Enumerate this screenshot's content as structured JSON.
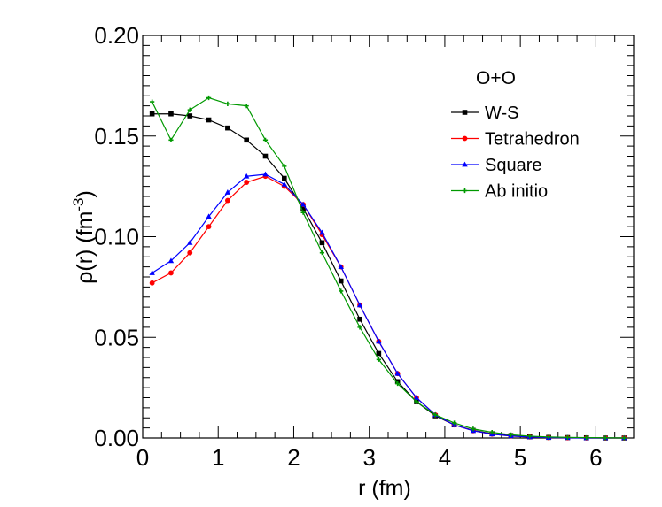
{
  "chart_data": {
    "type": "line",
    "title": "O+O",
    "xlabel": "r (fm)",
    "ylabel": {
      "prefix": "ρ(r)  (fm",
      "superscript": "-3",
      "suffix": ")"
    },
    "xlim": [
      0,
      6.5
    ],
    "ylim": [
      0,
      0.2
    ],
    "xticks": [
      0,
      1,
      2,
      3,
      4,
      5,
      6
    ],
    "xtick_labels": [
      "0",
      "1",
      "2",
      "3",
      "4",
      "5",
      "6"
    ],
    "yticks": [
      0,
      0.05,
      0.1,
      0.15,
      0.2
    ],
    "ytick_labels": [
      "0.00",
      "0.05",
      "0.10",
      "0.15",
      "0.20"
    ],
    "grid": false,
    "legend_position": "top-right",
    "series": [
      {
        "name": "W-S",
        "color": "#000000",
        "marker": "square",
        "x": [
          0.125,
          0.375,
          0.625,
          0.875,
          1.125,
          1.375,
          1.625,
          1.875,
          2.125,
          2.375,
          2.625,
          2.875,
          3.125,
          3.375,
          3.625,
          3.875,
          4.125,
          4.375,
          4.625,
          4.875,
          5.125,
          5.375,
          5.625,
          5.875,
          6.125,
          6.375
        ],
        "values": [
          0.161,
          0.161,
          0.16,
          0.158,
          0.154,
          0.148,
          0.14,
          0.129,
          0.114,
          0.097,
          0.078,
          0.059,
          0.042,
          0.028,
          0.018,
          0.011,
          0.0065,
          0.0038,
          0.0021,
          0.0012,
          0.0006,
          0.0003,
          0.0002,
          0.0001,
          0.0,
          0.0
        ]
      },
      {
        "name": "Tetrahedron",
        "color": "#ff0000",
        "marker": "circle",
        "x": [
          0.125,
          0.375,
          0.625,
          0.875,
          1.125,
          1.375,
          1.625,
          1.875,
          2.125,
          2.375,
          2.625,
          2.875,
          3.125,
          3.375,
          3.625,
          3.875,
          4.125,
          4.375,
          4.625,
          4.875,
          5.125,
          5.375,
          5.625,
          5.875,
          6.125,
          6.375
        ],
        "values": [
          0.077,
          0.082,
          0.092,
          0.105,
          0.118,
          0.127,
          0.13,
          0.125,
          0.116,
          0.101,
          0.085,
          0.066,
          0.048,
          0.032,
          0.02,
          0.0115,
          0.0065,
          0.0036,
          0.0019,
          0.001,
          0.0005,
          0.0002,
          0.0001,
          0.0,
          0.0,
          0.0
        ]
      },
      {
        "name": "Square",
        "color": "#0000ff",
        "marker": "triangle",
        "x": [
          0.125,
          0.375,
          0.625,
          0.875,
          1.125,
          1.375,
          1.625,
          1.875,
          2.125,
          2.375,
          2.625,
          2.875,
          3.125,
          3.375,
          3.625,
          3.875,
          4.125,
          4.375,
          4.625,
          4.875,
          5.125,
          5.375,
          5.625,
          5.875,
          6.125,
          6.375
        ],
        "values": [
          0.082,
          0.088,
          0.097,
          0.11,
          0.122,
          0.13,
          0.131,
          0.126,
          0.116,
          0.102,
          0.085,
          0.066,
          0.048,
          0.032,
          0.02,
          0.0115,
          0.0065,
          0.0036,
          0.0019,
          0.001,
          0.0005,
          0.0002,
          0.0001,
          0.0,
          0.0,
          0.0
        ]
      },
      {
        "name": "Ab initio",
        "color": "#009900",
        "marker": "plus",
        "x": [
          0.125,
          0.375,
          0.625,
          0.875,
          1.125,
          1.375,
          1.625,
          1.875,
          2.125,
          2.375,
          2.625,
          2.875,
          3.125,
          3.375,
          3.625,
          3.875,
          4.125,
          4.375,
          4.625,
          4.875,
          5.125,
          5.375,
          5.625,
          5.875,
          6.125,
          6.375
        ],
        "values": [
          0.167,
          0.148,
          0.163,
          0.169,
          0.166,
          0.165,
          0.148,
          0.135,
          0.112,
          0.092,
          0.073,
          0.055,
          0.039,
          0.027,
          0.018,
          0.0115,
          0.0075,
          0.0045,
          0.0028,
          0.0016,
          0.0009,
          0.0005,
          0.0003,
          0.0002,
          0.0001,
          0.0
        ]
      }
    ]
  }
}
